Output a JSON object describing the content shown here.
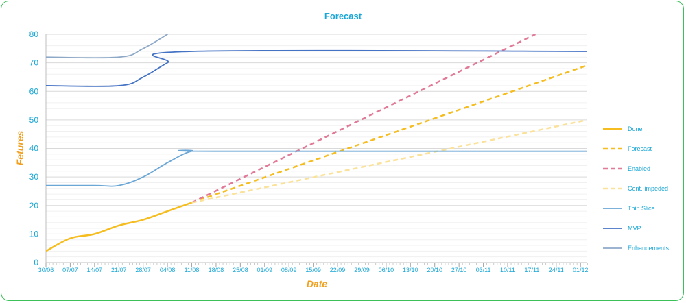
{
  "chart_data": {
    "type": "line",
    "title": "Forecast",
    "xlabel": "Date",
    "ylabel": "Fetures",
    "ylim": [
      0,
      80
    ],
    "yticks": [
      0,
      10,
      20,
      30,
      40,
      50,
      60,
      70,
      80
    ],
    "grid": true,
    "legend_position": "right",
    "x": [
      "30/06",
      "07/07",
      "14/07",
      "21/07",
      "28/07",
      "04/08",
      "11/08",
      "18/08",
      "25/08",
      "01/09",
      "08/09",
      "15/09",
      "22/09",
      "29/09",
      "06/10",
      "13/10",
      "20/10",
      "27/10",
      "03/11",
      "10/11",
      "17/11",
      "24/11",
      "01/12"
    ],
    "series": [
      {
        "name": "Done",
        "color": "#f5bd1f",
        "dash": "solid",
        "width": 2.5,
        "points": [
          [
            "30/06",
            4
          ],
          [
            "07/07",
            8.5
          ],
          [
            "14/07",
            10
          ],
          [
            "21/07",
            13
          ],
          [
            "28/07",
            15
          ],
          [
            "04/08",
            18
          ],
          [
            "11/08",
            21
          ]
        ]
      },
      {
        "name": "Forecast",
        "color": "#f5bd1f",
        "dash": "dashed",
        "width": 2.5,
        "points": [
          [
            "11/08",
            21
          ],
          [
            "05/12",
            70
          ]
        ]
      },
      {
        "name": "Enabled",
        "color": "#e07a96",
        "dash": "dashed",
        "width": 2.5,
        "points": [
          [
            "11/08",
            21
          ],
          [
            "18/11",
            80
          ]
        ]
      },
      {
        "name": "Cont.-impeded",
        "color": "#fbe29a",
        "dash": "dashed",
        "width": 2.5,
        "points": [
          [
            "11/08",
            21
          ],
          [
            "05/12",
            50.5
          ]
        ]
      },
      {
        "name": "Thin Slice",
        "color": "#6aa6d6",
        "dash": "solid",
        "width": 1.8,
        "points": [
          [
            "30/06",
            27
          ],
          [
            "14/07",
            27
          ],
          [
            "21/07",
            27
          ],
          [
            "28/07",
            30
          ],
          [
            "04/08",
            35
          ],
          [
            "11/08",
            39
          ],
          [
            "18/08",
            39
          ],
          [
            "05/12",
            39
          ]
        ]
      },
      {
        "name": "MVP",
        "color": "#4472c4",
        "dash": "solid",
        "width": 1.8,
        "points": [
          [
            "30/06",
            62
          ],
          [
            "21/07",
            62
          ],
          [
            "28/07",
            65
          ],
          [
            "04/08",
            70
          ],
          [
            "11/08",
            74
          ],
          [
            "05/12",
            74
          ]
        ]
      },
      {
        "name": "Enhancements",
        "color": "#8ea9c8",
        "dash": "solid",
        "width": 1.8,
        "points": [
          [
            "30/06",
            72
          ],
          [
            "21/07",
            72
          ],
          [
            "28/07",
            75
          ],
          [
            "04/08",
            80
          ]
        ]
      }
    ]
  }
}
